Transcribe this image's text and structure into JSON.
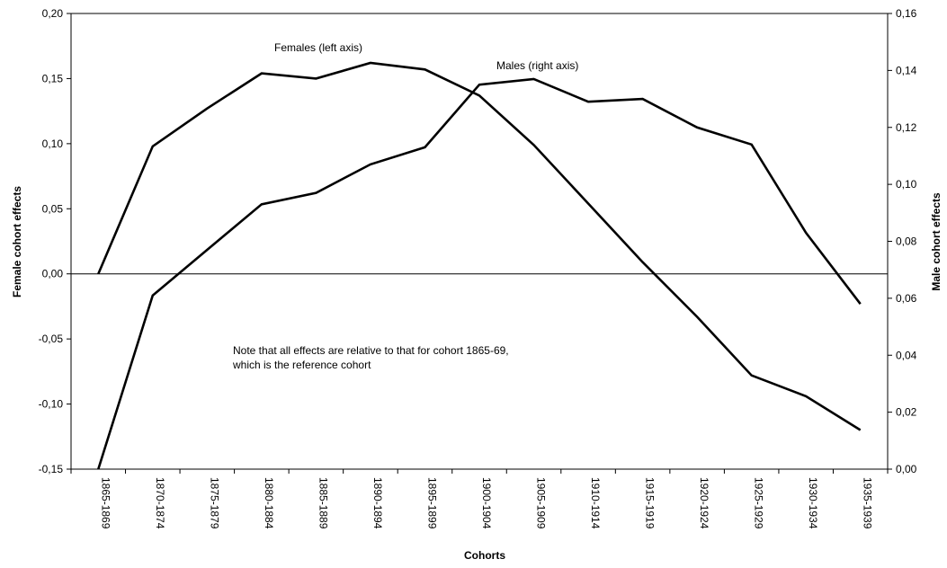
{
  "chart_data": {
    "type": "line",
    "categories": [
      "1865-1869",
      "1870-1874",
      "1875-1879",
      "1880-1884",
      "1885-1889",
      "1890-1894",
      "1895-1899",
      "1900-1904",
      "1905-1909",
      "1910-1914",
      "1915-1919",
      "1920-1924",
      "1925-1929",
      "1930-1934",
      "1935-1939"
    ],
    "xlabel": "Cohorts",
    "ylabel_left": "Female cohort effects",
    "ylabel_right": "Male cohort effects",
    "ylim_left": [
      -0.15,
      0.2
    ],
    "ylim_right": [
      0.0,
      0.16
    ],
    "yticks_left": [
      "-0,15",
      "-0,10",
      "-0,05",
      "0,00",
      "0,05",
      "0,10",
      "0,15",
      "0,20"
    ],
    "yticks_right": [
      "0,00",
      "0,02",
      "0,04",
      "0,06",
      "0,08",
      "0,10",
      "0,12",
      "0,14",
      "0,16"
    ],
    "grid": false,
    "series": [
      {
        "name": "Females (left axis)",
        "axis": "left",
        "values": [
          0.0,
          0.098,
          0.127,
          0.154,
          0.15,
          0.162,
          0.157,
          0.137,
          0.099,
          0.054,
          0.009,
          -0.033,
          -0.078,
          -0.094,
          -0.12
        ]
      },
      {
        "name": "Males (right axis)",
        "axis": "right",
        "values": [
          0.0,
          0.061,
          0.077,
          0.093,
          0.097,
          0.107,
          0.113,
          0.135,
          0.137,
          0.129,
          0.13,
          0.12,
          0.114,
          0.083,
          0.058
        ]
      }
    ],
    "series_labels": [
      {
        "text": "Females (left axis)"
      },
      {
        "text": "Males (right axis)"
      }
    ],
    "annotation": [
      "Note that all effects are relative to that for cohort 1865-69,",
      "which is the reference cohort"
    ],
    "line_color": "#000000"
  }
}
